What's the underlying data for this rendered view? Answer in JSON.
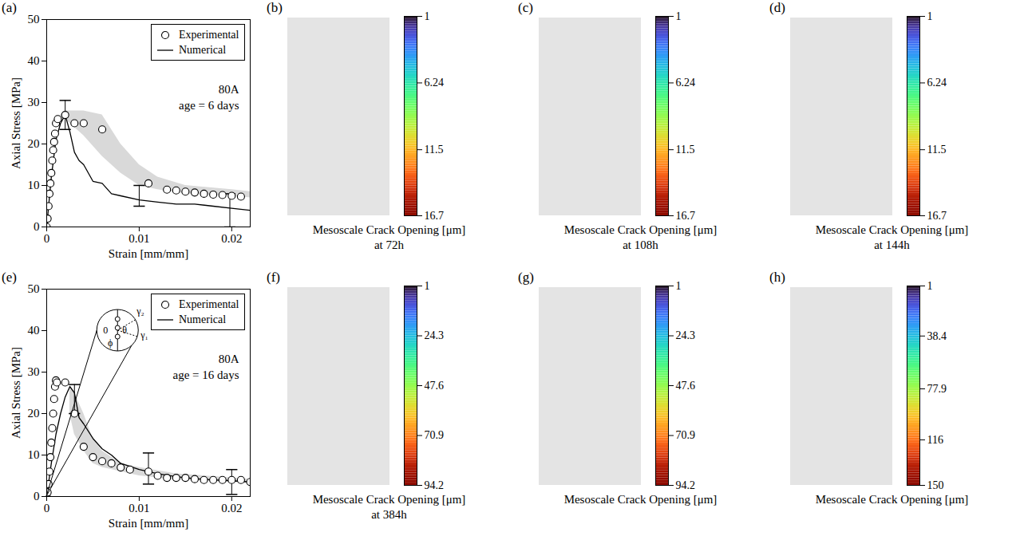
{
  "chart_data": [
    {
      "type": "line",
      "label": "(a)",
      "x_label": "Strain [mm/mm]",
      "y_label": "Axial Stress [MPa]",
      "xlim": [
        0,
        0.022
      ],
      "xticks": [
        0,
        0.01,
        0.02
      ],
      "ylim": [
        0,
        50
      ],
      "yticks": [
        0,
        10,
        20,
        30,
        40,
        50
      ],
      "legend": "upper right",
      "annotations": [
        "80A",
        "age = 6 days"
      ],
      "series": [
        {
          "name": "Experimental",
          "type": "scatter",
          "marker": "circle",
          "color": "#000000",
          "x": [
            0,
            0.0001,
            0.0002,
            0.0003,
            0.0004,
            0.0005,
            0.0006,
            0.0007,
            0.0008,
            0.0009,
            0.001,
            0.0012,
            0.002,
            0.003,
            0.004,
            0.006,
            0.011,
            0.013,
            0.014,
            0.015,
            0.016,
            0.017,
            0.018,
            0.019,
            0.02,
            0.021
          ],
          "values": [
            0,
            2,
            5,
            8,
            10.5,
            13,
            16,
            18.5,
            20.5,
            22.5,
            25,
            26,
            27,
            25,
            25,
            23.5,
            10.5,
            9,
            8.8,
            8.5,
            8.3,
            8,
            7.8,
            7.7,
            7.5,
            7.3
          ]
        },
        {
          "name": "Numerical",
          "type": "line",
          "line_style": "solid",
          "color": "#000000",
          "x": [
            0,
            0.0005,
            0.001,
            0.0015,
            0.002,
            0.0025,
            0.003,
            0.0035,
            0.004,
            0.005,
            0.006,
            0.007,
            0.008,
            0.01,
            0.012,
            0.014,
            0.016,
            0.018,
            0.02,
            0.022
          ],
          "values": [
            0,
            12,
            21,
            25,
            27,
            23,
            18,
            16,
            15,
            11,
            10.5,
            8,
            7.5,
            6.5,
            6,
            5.5,
            5.5,
            5,
            4.5,
            4
          ]
        }
      ],
      "band": {
        "color": "#d9d9d9",
        "x": [
          0.0015,
          0.002,
          0.004,
          0.006,
          0.008,
          0.01,
          0.012,
          0.015,
          0.02,
          0.022
        ],
        "low": [
          26,
          26,
          22,
          17,
          13,
          10,
          9,
          8,
          7.5,
          7
        ],
        "high": [
          27,
          28,
          28,
          27,
          20,
          15,
          12,
          10,
          9,
          8.5
        ]
      },
      "error_bars": {
        "x": [
          0.002,
          0.01,
          0.0198
        ],
        "low": [
          23.5,
          5,
          0
        ],
        "high": [
          30.5,
          10,
          8
        ]
      }
    },
    {
      "type": "image",
      "label": "(b)",
      "title": "Mesoscale Crack Opening [μm]",
      "subtitle": "at 72h",
      "color": "turbo",
      "colorbar": {
        "range": [
          1,
          16.7
        ],
        "ticks": [
          1,
          6.24,
          11.5,
          16.7
        ]
      }
    },
    {
      "type": "image",
      "label": "(c)",
      "title": "Mesoscale Crack Opening [μm]",
      "subtitle": "at 108h",
      "color": "turbo",
      "colorbar": {
        "range": [
          1,
          16.7
        ],
        "ticks": [
          1,
          6.24,
          11.5,
          16.7
        ]
      }
    },
    {
      "type": "image",
      "label": "(d)",
      "title": "Mesoscale Crack Opening [μm]",
      "subtitle": "at 144h",
      "color": "turbo",
      "colorbar": {
        "range": [
          1,
          16.7
        ],
        "ticks": [
          1,
          6.24,
          11.5,
          16.7
        ]
      }
    },
    {
      "type": "line",
      "label": "(e)",
      "x_label": "Strain [mm/mm]",
      "y_label": "Axial Stress [MPa]",
      "xlim": [
        0,
        0.022
      ],
      "xticks": [
        0,
        0.01,
        0.02
      ],
      "ylim": [
        0,
        50
      ],
      "yticks": [
        0,
        10,
        20,
        30,
        40,
        50
      ],
      "legend": "upper right",
      "annotations": [
        "80A",
        "age = 16 days"
      ],
      "inset": {
        "labels": [
          "0",
          "θ",
          "ϕ",
          "γ₁",
          "γ₂"
        ]
      },
      "series": [
        {
          "name": "Experimental",
          "type": "scatter",
          "marker": "circle",
          "color": "#000000",
          "x": [
            0,
            0.0001,
            0.0002,
            0.0003,
            0.0004,
            0.0005,
            0.0006,
            0.0007,
            0.0008,
            0.0009,
            0.001,
            0.0011,
            0.002,
            0.003,
            0.004,
            0.005,
            0.006,
            0.007,
            0.008,
            0.009,
            0.011,
            0.012,
            0.013,
            0.014,
            0.015,
            0.016,
            0.017,
            0.018,
            0.019,
            0.02,
            0.021,
            0.022
          ],
          "values": [
            0,
            1,
            3,
            6,
            9.5,
            13,
            16.5,
            20,
            23.5,
            26.5,
            28,
            27.5,
            27.5,
            20,
            12,
            9.5,
            8.5,
            8,
            7,
            6.5,
            6,
            5,
            4.5,
            4.5,
            4.5,
            4.2,
            4,
            4,
            4,
            4,
            4,
            3.5
          ]
        },
        {
          "name": "Numerical",
          "type": "line",
          "line_style": "solid",
          "color": "#000000",
          "x": [
            0,
            0.0005,
            0.001,
            0.0015,
            0.002,
            0.0025,
            0.003,
            0.0035,
            0.004,
            0.005,
            0.006,
            0.007,
            0.008,
            0.01,
            0.012,
            0.014,
            0.016,
            0.018,
            0.02,
            0.022
          ],
          "values": [
            0,
            8,
            15,
            20,
            24,
            26.5,
            25,
            19,
            17.5,
            14,
            11.5,
            10,
            8,
            6.5,
            5.5,
            4.8,
            4.3,
            4,
            3.8,
            3.5
          ]
        }
      ],
      "band": {
        "color": "#d9d9d9",
        "x": [
          0.0025,
          0.003,
          0.004,
          0.005,
          0.006,
          0.008,
          0.01,
          0.014,
          0.02,
          0.022
        ],
        "low": [
          20,
          15,
          11,
          8,
          7,
          6,
          5,
          4,
          3.5,
          3.3
        ],
        "high": [
          27,
          25,
          20,
          14,
          11,
          8,
          7,
          5.5,
          4.5,
          4.2
        ]
      },
      "error_bars": {
        "x": [
          0.003,
          0.011,
          0.02
        ],
        "low": [
          20,
          3,
          0.5
        ],
        "high": [
          27,
          10.5,
          6.5
        ]
      }
    },
    {
      "type": "image",
      "label": "(f)",
      "title": "Mesoscale Crack Opening [μm]",
      "subtitle": "at 384h",
      "color": "turbo",
      "colorbar": {
        "range": [
          1,
          94.2
        ],
        "ticks": [
          1,
          24.3,
          47.6,
          70.9,
          94.2
        ]
      }
    },
    {
      "type": "image",
      "label": "(g)",
      "title": "Mesoscale Crack Opening [μm]",
      "color": "turbo",
      "colorbar": {
        "range": [
          1,
          94.2
        ],
        "ticks": [
          1,
          24.3,
          47.6,
          70.9,
          94.2
        ]
      }
    },
    {
      "type": "image",
      "label": "(h)",
      "title": "Mesoscale Crack Opening [μm]",
      "color": "turbo",
      "colorbar": {
        "range": [
          1,
          150
        ],
        "ticks": [
          1,
          38.4,
          77.9,
          116,
          150
        ]
      }
    }
  ]
}
